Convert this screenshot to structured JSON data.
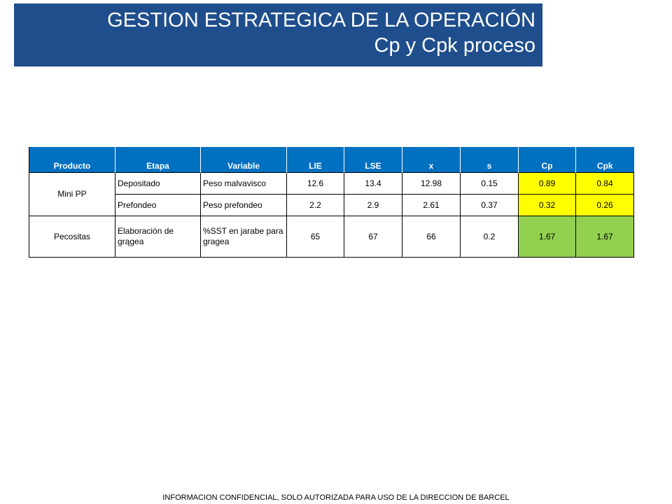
{
  "header": {
    "title_line1": "GESTION ESTRATEGICA DE LA OPERACIÓN",
    "title_line2": "Cp y Cpk proceso"
  },
  "table": {
    "columns": [
      "Producto",
      "Etapa",
      "Variable",
      "LIE",
      "LSE",
      "x",
      "s",
      "Cp",
      "Cpk"
    ],
    "groups": [
      {
        "producto": "Mini PP",
        "rows": [
          {
            "etapa": "Depositado",
            "variable": "Peso malvavisco",
            "lie": "12.6",
            "lse": "13.4",
            "x": "12.98",
            "s": "0.15",
            "cp": "0.89",
            "cpk": "0.84",
            "status": "yellow"
          },
          {
            "etapa": "Prefondeo",
            "variable": "Peso prefondeo",
            "lie": "2.2",
            "lse": "2.9",
            "x": "2.61",
            "s": "0.37",
            "cp": "0.32",
            "cpk": "0.26",
            "status": "yellow"
          }
        ]
      },
      {
        "producto": "Pecositas",
        "rows": [
          {
            "etapa": "Elaboración de grągea",
            "variable": "%SST en jarabe para gragea",
            "lie": "65",
            "lse": "67",
            "x": "66",
            "s": "0.2",
            "cp": "1.67",
            "cpk": "1.67",
            "status": "green"
          }
        ]
      }
    ]
  },
  "colors": {
    "banner": "#1f4e8c",
    "header_row": "#0070c0",
    "warning": "#ffff00",
    "ok": "#92d050"
  },
  "footer": {
    "text": "INFORMACION CONFIDENCIAL, SOLO AUTORIZADA PARA USO DE LA DIRECCION DE BARCEL"
  }
}
